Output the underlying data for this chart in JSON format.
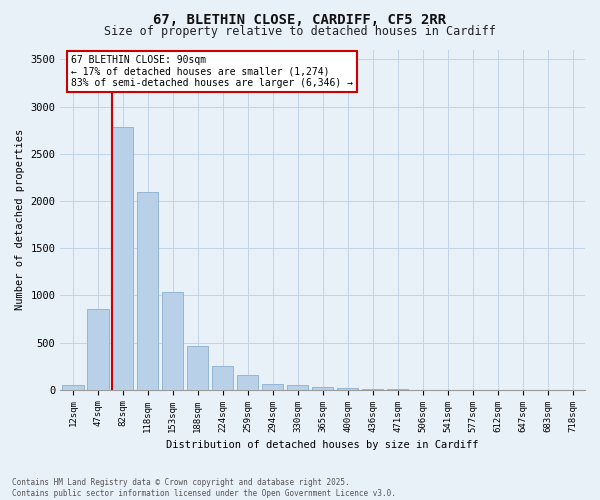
{
  "title_line1": "67, BLETHIN CLOSE, CARDIFF, CF5 2RR",
  "title_line2": "Size of property relative to detached houses in Cardiff",
  "xlabel": "Distribution of detached houses by size in Cardiff",
  "ylabel": "Number of detached properties",
  "categories": [
    "12sqm",
    "47sqm",
    "82sqm",
    "118sqm",
    "153sqm",
    "188sqm",
    "224sqm",
    "259sqm",
    "294sqm",
    "330sqm",
    "365sqm",
    "400sqm",
    "436sqm",
    "471sqm",
    "506sqm",
    "541sqm",
    "577sqm",
    "612sqm",
    "647sqm",
    "683sqm",
    "718sqm"
  ],
  "values": [
    55,
    850,
    2780,
    2100,
    1040,
    460,
    250,
    160,
    60,
    45,
    30,
    15,
    8,
    5,
    2,
    1,
    0,
    0,
    0,
    0,
    0
  ],
  "bar_color": "#b8d0e8",
  "bar_edge_color": "#8ab0d0",
  "grid_color": "#c0d4e8",
  "background_color": "#e8f0f8",
  "vline_color": "#cc0000",
  "annotation_title": "67 BLETHIN CLOSE: 90sqm",
  "annotation_line2": "← 17% of detached houses are smaller (1,274)",
  "annotation_line3": "83% of semi-detached houses are larger (6,346) →",
  "annotation_box_color": "#cc0000",
  "annotation_bg": "#ffffff",
  "ylim": [
    0,
    3600
  ],
  "yticks": [
    0,
    500,
    1000,
    1500,
    2000,
    2500,
    3000,
    3500
  ],
  "footnote_line1": "Contains HM Land Registry data © Crown copyright and database right 2025.",
  "footnote_line2": "Contains public sector information licensed under the Open Government Licence v3.0."
}
